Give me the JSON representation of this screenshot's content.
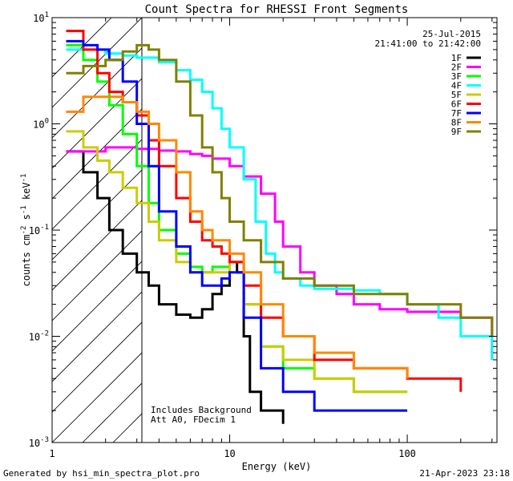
{
  "chart_data": {
    "type": "line",
    "title": "Count Spectra for RHESSI Front Segments",
    "xlabel": "Energy (keV)",
    "ylabel": "counts cm",
    "ylabel_sup1": "-2",
    "ylabel_mid": " s",
    "ylabel_sup2": "-1",
    "ylabel_end": " keV",
    "ylabel_sup3": "-1",
    "xscale": "log",
    "yscale": "log",
    "xlim": [
      1,
      320
    ],
    "ylim": [
      0.001,
      10
    ],
    "x_ticks": [
      {
        "value": 1,
        "label": "1"
      },
      {
        "value": 10,
        "label": "10"
      },
      {
        "value": 100,
        "label": "100"
      }
    ],
    "y_ticks": [
      {
        "value": 0.001,
        "base": "10",
        "exp": "-3"
      },
      {
        "value": 0.01,
        "base": "10",
        "exp": "-2"
      },
      {
        "value": 0.1,
        "base": "10",
        "exp": "-1"
      },
      {
        "value": 1,
        "base": "10",
        "exp": "0"
      },
      {
        "value": 10,
        "base": "10",
        "exp": "1"
      }
    ],
    "date": "25-Jul-2015",
    "time_range": "21:41:00 to 21:42:00",
    "annotations": [
      "Includes Background",
      "Att A0, FDecim 1"
    ],
    "hatched_region_keV": [
      1,
      3
    ],
    "series": [
      {
        "name": "1F",
        "color": "#000000",
        "x": [
          1.2,
          1.5,
          1.8,
          2.1,
          2.5,
          3.0,
          3.5,
          4.0,
          5.0,
          6.0,
          7.0,
          8.0,
          9.0,
          10.0,
          11.0,
          12.0,
          13.0,
          15.0,
          20.0
        ],
        "y": [
          0.55,
          0.35,
          0.2,
          0.1,
          0.06,
          0.04,
          0.03,
          0.02,
          0.016,
          0.015,
          0.018,
          0.025,
          0.03,
          0.05,
          0.04,
          0.01,
          0.003,
          0.002,
          0.0015
        ]
      },
      {
        "name": "2F",
        "color": "#ff00ff",
        "x": [
          1.2,
          2.0,
          3.0,
          4.0,
          5.0,
          6.0,
          7.0,
          8.0,
          10.0,
          12.0,
          15.0,
          18.0,
          20.0,
          25.0,
          30.0,
          40.0,
          50.0,
          70.0,
          100.0,
          150.0,
          200.0,
          300.0
        ],
        "y": [
          0.55,
          0.6,
          0.58,
          0.56,
          0.55,
          0.52,
          0.5,
          0.47,
          0.4,
          0.32,
          0.22,
          0.12,
          0.07,
          0.04,
          0.03,
          0.025,
          0.02,
          0.018,
          0.017,
          0.017,
          0.015,
          0.006
        ]
      },
      {
        "name": "3F",
        "color": "#00ff00",
        "x": [
          1.2,
          1.5,
          1.8,
          2.1,
          2.5,
          3.0,
          3.5,
          4.0,
          5.0,
          6.0,
          7.0,
          8.0,
          10.0,
          12.0,
          15.0,
          20.0,
          30.0,
          50.0,
          100.0
        ],
        "y": [
          5.5,
          4.0,
          2.5,
          1.5,
          0.8,
          0.4,
          0.18,
          0.1,
          0.06,
          0.045,
          0.04,
          0.045,
          0.05,
          0.02,
          0.008,
          0.005,
          0.004,
          0.003,
          0.003
        ]
      },
      {
        "name": "4F",
        "color": "#00ffff",
        "x": [
          1.2,
          2.0,
          2.5,
          3.0,
          4.0,
          5.0,
          6.0,
          7.0,
          8.0,
          9.0,
          10.0,
          12.0,
          14.0,
          16.0,
          18.0,
          20.0,
          25.0,
          30.0,
          40.0,
          50.0,
          70.0,
          100.0,
          150.0,
          200.0,
          300.0
        ],
        "y": [
          5.0,
          4.6,
          4.4,
          4.2,
          3.8,
          3.2,
          2.6,
          2.0,
          1.4,
          0.9,
          0.6,
          0.3,
          0.12,
          0.06,
          0.04,
          0.035,
          0.03,
          0.028,
          0.028,
          0.027,
          0.025,
          0.02,
          0.015,
          0.01,
          0.006
        ]
      },
      {
        "name": "5F",
        "color": "#cccc00",
        "x": [
          1.2,
          1.5,
          1.8,
          2.1,
          2.5,
          3.0,
          3.5,
          4.0,
          5.0,
          6.0,
          7.0,
          8.0,
          10.0,
          12.0,
          15.0,
          20.0,
          30.0,
          50.0,
          100.0
        ],
        "y": [
          0.85,
          0.6,
          0.45,
          0.35,
          0.25,
          0.18,
          0.12,
          0.08,
          0.05,
          0.04,
          0.04,
          0.04,
          0.05,
          0.02,
          0.008,
          0.006,
          0.004,
          0.003,
          0.003
        ]
      },
      {
        "name": "6F",
        "color": "#ff0000",
        "x": [
          1.2,
          1.5,
          1.8,
          2.1,
          2.5,
          3.0,
          3.5,
          4.0,
          5.0,
          6.0,
          7.0,
          8.0,
          9.0,
          10.0,
          12.0,
          15.0,
          20.0,
          30.0,
          50.0,
          100.0,
          200.0
        ],
        "y": [
          7.5,
          5.0,
          3.0,
          2.0,
          1.6,
          1.2,
          0.7,
          0.4,
          0.2,
          0.12,
          0.08,
          0.07,
          0.06,
          0.05,
          0.03,
          0.015,
          0.01,
          0.006,
          0.005,
          0.004,
          0.003
        ]
      },
      {
        "name": "7F",
        "color": "#0000ff",
        "x": [
          1.2,
          1.5,
          1.8,
          2.1,
          2.5,
          3.0,
          3.5,
          4.0,
          5.0,
          6.0,
          7.0,
          8.0,
          9.0,
          10.0,
          12.0,
          15.0,
          20.0,
          30.0,
          50.0,
          100.0
        ],
        "y": [
          6.0,
          5.5,
          5.0,
          4.0,
          2.5,
          1.0,
          0.4,
          0.15,
          0.07,
          0.04,
          0.03,
          0.03,
          0.035,
          0.04,
          0.015,
          0.005,
          0.003,
          0.002,
          0.002,
          0.002
        ]
      },
      {
        "name": "8F",
        "color": "#ff8800",
        "x": [
          1.2,
          1.5,
          2.0,
          2.5,
          3.0,
          3.5,
          4.0,
          5.0,
          6.0,
          7.0,
          8.0,
          10.0,
          12.0,
          15.0,
          20.0,
          30.0,
          50.0,
          100.0
        ],
        "y": [
          1.3,
          1.8,
          1.8,
          1.6,
          1.3,
          1.0,
          0.7,
          0.35,
          0.15,
          0.1,
          0.08,
          0.06,
          0.04,
          0.02,
          0.01,
          0.007,
          0.005,
          0.004
        ]
      },
      {
        "name": "9F",
        "color": "#808000",
        "x": [
          1.2,
          1.5,
          2.0,
          2.5,
          3.0,
          3.5,
          4.0,
          5.0,
          6.0,
          7.0,
          8.0,
          9.0,
          10.0,
          12.0,
          15.0,
          20.0,
          30.0,
          50.0,
          100.0,
          200.0,
          300.0
        ],
        "y": [
          3.0,
          3.5,
          4.0,
          4.8,
          5.5,
          5.0,
          4.0,
          2.5,
          1.2,
          0.6,
          0.35,
          0.2,
          0.12,
          0.08,
          0.05,
          0.035,
          0.03,
          0.025,
          0.02,
          0.015,
          0.01
        ]
      }
    ]
  },
  "footer": {
    "left": "Generated by hsi_min_spectra_plot.pro",
    "right": "21-Apr-2023 23:18"
  }
}
